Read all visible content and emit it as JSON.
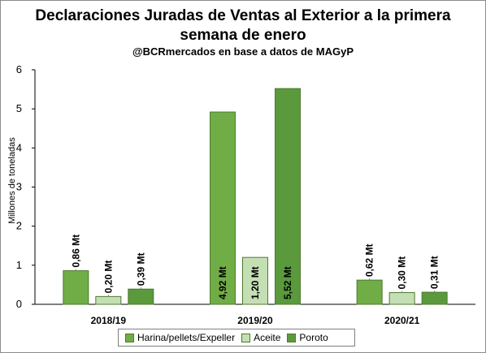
{
  "chart_data": {
    "type": "bar",
    "title": "Declaraciones Juradas de Ventas al Exterior a la primera semana de enero",
    "title_line1": "Declaraciones Juradas de Ventas al Exterior a la primera",
    "title_line2": "semana de enero",
    "subtitle": "@BCRmercados en base a datos de MAGyP",
    "ylabel": "Millones de toneladas",
    "xlabel": "",
    "ylim": [
      0,
      6
    ],
    "yticks": [
      "0",
      "1",
      "2",
      "3",
      "4",
      "5",
      "6"
    ],
    "grid": false,
    "legend_position": "bottom",
    "categories": [
      "2018/19",
      "2019/20",
      "2020/21"
    ],
    "series": [
      {
        "name": "Harina/pellets/Expeller",
        "values": [
          0.86,
          4.92,
          0.62
        ],
        "labels": [
          "0,86 Mt",
          "4,92 Mt",
          "0,62 Mt"
        ],
        "color": "#70ad47"
      },
      {
        "name": "Aceite",
        "values": [
          0.2,
          1.2,
          0.3
        ],
        "labels": [
          "0,20 Mt",
          "1,20 Mt",
          "0,30 Mt"
        ],
        "color": "#c5dfb4"
      },
      {
        "name": "Poroto",
        "values": [
          0.39,
          5.52,
          0.31
        ],
        "labels": [
          "0,39 Mt",
          "5,52 Mt",
          "0,31 Mt"
        ],
        "color": "#5a9a3c"
      }
    ]
  }
}
